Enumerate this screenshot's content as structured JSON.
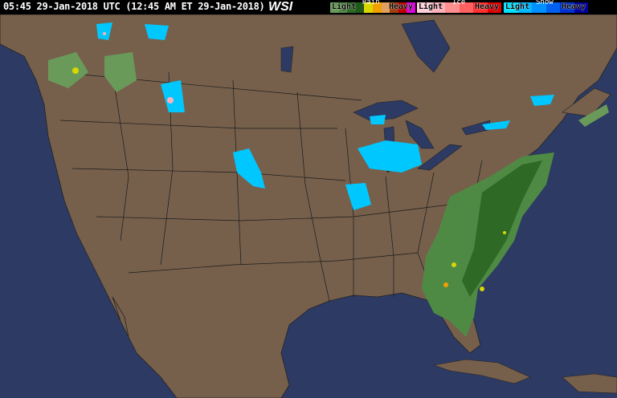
{
  "header": {
    "timestamp": "05:45 29-Jan-2018 UTC  (12:45 AM ET 29-Jan-2018)",
    "logo": "WSI"
  },
  "legend": {
    "rain": {
      "title": "Rain",
      "light": "Light",
      "heavy": "Heavy",
      "colors": [
        "#6a9a5a",
        "#4f8a44",
        "#2e6a26",
        "#1f5a1a",
        "#d8d800",
        "#f0a000",
        "#e0a060",
        "#a04010",
        "#c00000",
        "#e000e0"
      ]
    },
    "ice": {
      "title": "Ice",
      "light": "Light",
      "heavy": "Heavy",
      "colors": [
        "#ffd0d8",
        "#ffb0b8",
        "#ff9090",
        "#ff6060",
        "#ff3030",
        "#e00000"
      ]
    },
    "snow": {
      "title": "Snow",
      "light": "Light",
      "heavy": "Heavy",
      "colors": [
        "#00e0ff",
        "#00b8ff",
        "#0090ff",
        "#0060f0",
        "#0030d0",
        "#0000a0"
      ]
    }
  },
  "colors": {
    "ocean": "#2d3a63",
    "land": "#76604c",
    "borders": "#1a1a1a",
    "lakes": "#2d3a63"
  }
}
